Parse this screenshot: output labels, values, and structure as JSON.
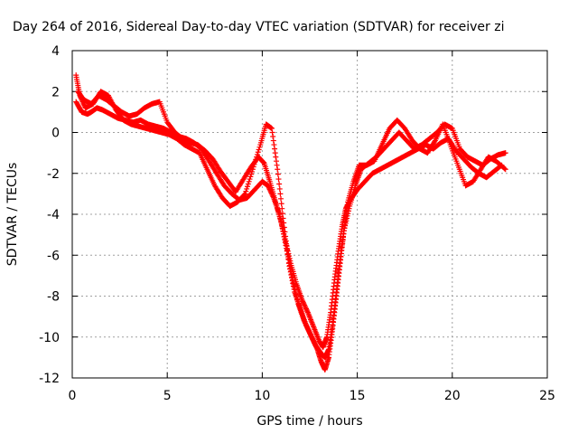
{
  "chart_data": {
    "type": "scatter",
    "title": "Day 264 of 2016, Sidereal Day-to-day VTEC variation (SDTVAR) for receiver zi",
    "xlabel": "GPS time / hours",
    "ylabel": "SDTVAR / TECUs",
    "xlim": [
      0,
      25
    ],
    "ylim": [
      -12,
      4
    ],
    "xticks": [
      "0",
      "5",
      "10",
      "15",
      "20",
      "25"
    ],
    "yticks": [
      "-12",
      "-10",
      "-8",
      "-6",
      "-4",
      "-2",
      "0",
      "2",
      "4"
    ],
    "grid": true,
    "marker": "plus",
    "color": "#ff0000",
    "series": [
      {
        "x": [
          0.2,
          0.5,
          0.8,
          1.0,
          1.3,
          1.6,
          2.0,
          2.4,
          2.8,
          3.2,
          3.6,
          4.0,
          4.4,
          4.8,
          5.2,
          5.6,
          6.0,
          6.4,
          6.8,
          7.2,
          7.6,
          8.0,
          8.4,
          8.8,
          9.2,
          9.6,
          10.0,
          10.3,
          10.6,
          10.9,
          11.2,
          11.5,
          11.8,
          12.1,
          12.4,
          12.7,
          13.0,
          13.2,
          13.4,
          13.6,
          13.8,
          14.0,
          14.2,
          14.4,
          14.7,
          15.0,
          15.4,
          15.8,
          16.2,
          16.6,
          17.0,
          17.4,
          17.8,
          18.2,
          18.6,
          19.0,
          19.4,
          19.8,
          20.2,
          20.6,
          21.0,
          21.4,
          21.8,
          22.2,
          22.6
        ],
        "y": [
          1.5,
          1.0,
          0.9,
          1.0,
          1.2,
          1.1,
          0.9,
          0.7,
          0.6,
          0.5,
          0.6,
          0.4,
          0.3,
          0.2,
          0.0,
          -0.2,
          -0.3,
          -0.5,
          -0.8,
          -1.4,
          -2.0,
          -2.6,
          -3.0,
          -3.3,
          -3.2,
          -2.8,
          -2.4,
          -2.6,
          -3.2,
          -4.0,
          -5.2,
          -6.4,
          -7.4,
          -8.2,
          -8.8,
          -9.5,
          -10.2,
          -10.5,
          -10.0,
          -8.8,
          -7.2,
          -5.8,
          -4.6,
          -3.7,
          -3.2,
          -2.8,
          -2.4,
          -2.0,
          -1.8,
          -1.6,
          -1.4,
          -1.2,
          -1.0,
          -0.8,
          -0.6,
          -0.8,
          -0.5,
          -0.3,
          -0.9,
          -1.3,
          -1.7,
          -2.0,
          -2.2,
          -1.9,
          -1.6
        ]
      },
      {
        "x": [
          0.3,
          0.6,
          1.0,
          1.4,
          1.8,
          2.2,
          2.6,
          3.0,
          3.4,
          3.8,
          4.2,
          4.6,
          5.0,
          5.4,
          5.8,
          6.2,
          6.6,
          7.0,
          7.4,
          7.8,
          8.2,
          8.6,
          9.0,
          9.4,
          9.8,
          10.1,
          10.4,
          10.7,
          11.0,
          11.3,
          11.6,
          11.9,
          12.2,
          12.5,
          12.8,
          13.1,
          13.3,
          13.5,
          13.7,
          13.9,
          14.1,
          14.3,
          14.6,
          14.9,
          15.2,
          15.6,
          16.0,
          16.4,
          16.8,
          17.2,
          17.6,
          18.0,
          18.4,
          18.8,
          19.2,
          19.6,
          20.0,
          20.4,
          20.8,
          21.2,
          21.6,
          22.0,
          22.4,
          22.8
        ],
        "y": [
          2.0,
          1.6,
          1.4,
          1.8,
          1.6,
          1.3,
          1.0,
          0.8,
          0.9,
          1.2,
          1.4,
          1.5,
          0.5,
          0.0,
          -0.3,
          -0.5,
          -0.6,
          -0.9,
          -1.3,
          -1.9,
          -2.4,
          -2.9,
          -2.3,
          -1.7,
          -1.2,
          -1.5,
          -2.4,
          -3.4,
          -4.4,
          -5.8,
          -7.2,
          -8.4,
          -9.2,
          -9.8,
          -10.4,
          -10.8,
          -11.0,
          -10.6,
          -9.4,
          -7.8,
          -6.2,
          -4.8,
          -3.6,
          -2.6,
          -1.8,
          -1.5,
          -1.2,
          -0.8,
          -0.4,
          0.0,
          -0.4,
          -0.8,
          -0.6,
          -0.3,
          0.0,
          0.4,
          0.2,
          -0.8,
          -1.2,
          -1.4,
          -1.6,
          -1.3,
          -1.1,
          -1.0
        ]
      },
      {
        "x": [
          0.2,
          0.4,
          0.7,
          1.1,
          1.5,
          1.9,
          2.3,
          2.7,
          3.1,
          3.5,
          3.9,
          4.3,
          4.7,
          5.1,
          5.5,
          5.9,
          6.3,
          6.7,
          7.1,
          7.5,
          7.9,
          8.3,
          8.7,
          9.1,
          9.5,
          9.9,
          10.2,
          10.5,
          10.8,
          11.1,
          11.4,
          11.7,
          12.0,
          12.3,
          12.6,
          12.9,
          13.1,
          13.3,
          13.5,
          13.7,
          13.9,
          14.1,
          14.3,
          14.5,
          14.8,
          15.1,
          15.5,
          15.9,
          16.3,
          16.7,
          17.1,
          17.5,
          17.9,
          18.3,
          18.7,
          19.1,
          19.5,
          19.9,
          20.3,
          20.7,
          21.1,
          21.5,
          21.9,
          22.3,
          22.8
        ],
        "y": [
          2.8,
          1.8,
          1.2,
          1.4,
          2.0,
          1.8,
          1.1,
          0.6,
          0.4,
          0.3,
          0.2,
          0.1,
          0.0,
          -0.1,
          -0.3,
          -0.6,
          -0.8,
          -1.0,
          -1.8,
          -2.6,
          -3.2,
          -3.6,
          -3.4,
          -3.0,
          -1.8,
          -0.6,
          0.4,
          0.2,
          -1.8,
          -4.2,
          -6.4,
          -7.8,
          -8.6,
          -9.4,
          -10.0,
          -10.6,
          -11.2,
          -11.6,
          -11.0,
          -9.6,
          -8.0,
          -6.4,
          -4.8,
          -3.4,
          -2.4,
          -1.6,
          -1.6,
          -1.4,
          -0.6,
          0.2,
          0.6,
          0.2,
          -0.4,
          -0.8,
          -1.0,
          -0.4,
          0.4,
          -0.6,
          -1.6,
          -2.6,
          -2.4,
          -1.8,
          -1.2,
          -1.4,
          -1.8
        ]
      }
    ]
  }
}
